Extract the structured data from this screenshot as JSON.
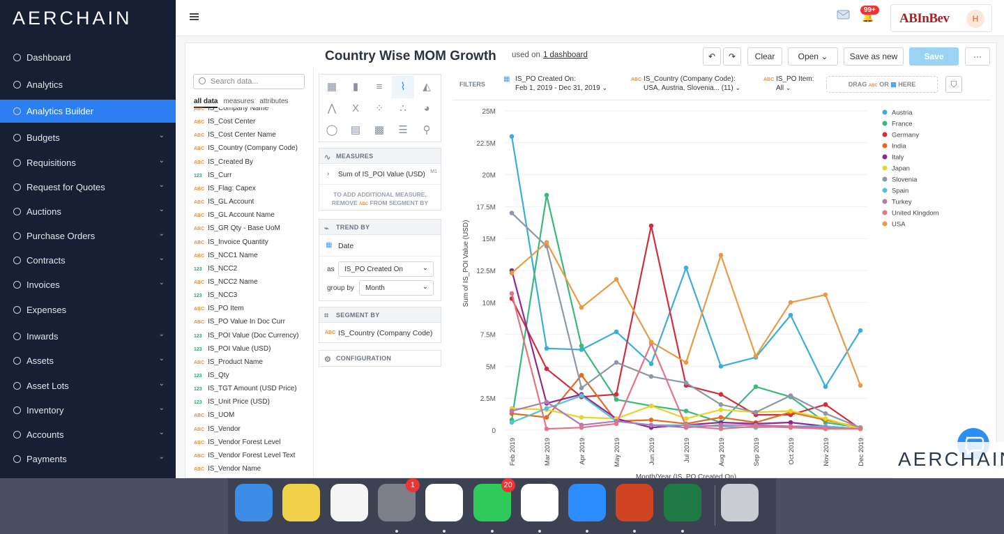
{
  "app": {
    "logo": "AERCHAIN",
    "brand": "ABInBev",
    "avatar_initial": "H",
    "notifications": "99+"
  },
  "sidebar": {
    "items": [
      {
        "label": "Dashboard",
        "chev": false
      },
      {
        "label": "Analytics",
        "chev": false
      },
      {
        "label": "Analytics Builder",
        "chev": false,
        "active": true
      },
      {
        "label": "Budgets",
        "chev": true
      },
      {
        "label": "Requisitions",
        "chev": true
      },
      {
        "label": "Request for Quotes",
        "chev": true
      },
      {
        "label": "Auctions",
        "chev": true
      },
      {
        "label": "Purchase Orders",
        "chev": true
      },
      {
        "label": "Contracts",
        "chev": true
      },
      {
        "label": "Invoices",
        "chev": true
      },
      {
        "label": "Expenses",
        "chev": false
      },
      {
        "label": "Inwards",
        "chev": true
      },
      {
        "label": "Assets",
        "chev": true
      },
      {
        "label": "Asset Lots",
        "chev": true
      },
      {
        "label": "Inventory",
        "chev": true
      },
      {
        "label": "Accounts",
        "chev": true
      },
      {
        "label": "Payments",
        "chev": true
      }
    ]
  },
  "header": {
    "title": "Country Wise MOM Growth",
    "used_on": "used on",
    "used_on_link": "1 dashboard",
    "clear": "Clear",
    "open": "Open",
    "save_as_new": "Save as new",
    "save": "Save",
    "more": "···"
  },
  "data_panel": {
    "search_placeholder": "Search data...",
    "tabs": [
      "all data",
      "measures",
      "attributes"
    ],
    "fields": [
      {
        "t": "ABC",
        "label": "IS_Company Name"
      },
      {
        "t": "ABC",
        "label": "IS_Cost Center"
      },
      {
        "t": "ABC",
        "label": "IS_Cost Center Name"
      },
      {
        "t": "ABC",
        "label": "IS_Country (Company Code)"
      },
      {
        "t": "ABC",
        "label": "IS_Created By"
      },
      {
        "t": "123",
        "label": "IS_Curr"
      },
      {
        "t": "ABC",
        "label": "IS_Flag: Capex"
      },
      {
        "t": "ABC",
        "label": "IS_GL Account"
      },
      {
        "t": "ABC",
        "label": "IS_GL Account Name"
      },
      {
        "t": "ABC",
        "label": "IS_GR Qty - Base UoM"
      },
      {
        "t": "ABC",
        "label": "IS_Invoice Quantity"
      },
      {
        "t": "ABC",
        "label": "IS_NCC1 Name"
      },
      {
        "t": "123",
        "label": "IS_NCC2"
      },
      {
        "t": "ABC",
        "label": "IS_NCC2 Name"
      },
      {
        "t": "123",
        "label": "IS_NCC3"
      },
      {
        "t": "ABC",
        "label": "IS_PO Item"
      },
      {
        "t": "ABC",
        "label": "IS_PO Value In Doc Curr"
      },
      {
        "t": "123",
        "label": "IS_POI Value (Doc Currency)"
      },
      {
        "t": "123",
        "label": "IS_POI Value (USD)"
      },
      {
        "t": "ABC",
        "label": "IS_Product Name"
      },
      {
        "t": "123",
        "label": "IS_Qty"
      },
      {
        "t": "123",
        "label": "IS_TGT Amount (USD Price)"
      },
      {
        "t": "123",
        "label": "IS_Unit Price (USD)"
      },
      {
        "t": "ABC",
        "label": "IS_UOM"
      },
      {
        "t": "ABC",
        "label": "IS_Vendor"
      },
      {
        "t": "ABC",
        "label": "IS_Vendor Forest Level"
      },
      {
        "t": "ABC",
        "label": "IS_Vendor Forest Level Text"
      },
      {
        "t": "ABC",
        "label": "IS_Vendor Name"
      }
    ]
  },
  "buckets": {
    "measures_title": "MEASURES",
    "measure_item": "Sum of IS_POI Value (USD)",
    "measure_tag": "M1",
    "measures_hint_1": "TO ADD ADDITIONAL MEASURE,",
    "measures_hint_2a": "REMOVE",
    "measures_hint_2b": "FROM SEGMENT BY",
    "trend_title": "TREND BY",
    "trend_item": "Date",
    "as_label": "as",
    "as_value": "IS_PO Created On",
    "group_label": "group by",
    "group_value": "Month",
    "segment_title": "SEGMENT BY",
    "segment_item": "IS_Country (Company Code)",
    "config_title": "CONFIGURATION"
  },
  "filters": {
    "label": "FILTERS",
    "f1_name": "IS_PO Created On:",
    "f1_value": "Feb 1, 2019 - Dec 31, 2019",
    "f2_name": "IS_Country (Company Code):",
    "f2_value": "USA, Austria, Slovenia... (11)",
    "f3_name": "IS_PO Item:",
    "f3_value": "All",
    "drop_a": "DRAG",
    "drop_b": "OR",
    "drop_c": "HERE"
  },
  "chart_data": {
    "type": "line",
    "title": "",
    "xlabel": "Month/Year (IS_PO Created On)",
    "ylabel": "Sum of IS_POI Value (USD)",
    "ylim": [
      0,
      25000000
    ],
    "yticks": [
      "0",
      "2.5M",
      "5M",
      "7.5M",
      "10M",
      "12.5M",
      "15M",
      "17.5M",
      "20M",
      "22.5M",
      "25M"
    ],
    "categories": [
      "Feb 2019",
      "Mar 2019",
      "Apr 2019",
      "May 2019",
      "Jun 2019",
      "Jul 2019",
      "Aug 2019",
      "Sep 2019",
      "Oct 2019",
      "Nov 2019",
      "Dec 2019"
    ],
    "legend_position": "right",
    "series": [
      {
        "name": "Austria",
        "color": "#3aaed8",
        "values": [
          23000000,
          6400000,
          6300000,
          7700000,
          5200000,
          12700000,
          5000000,
          5700000,
          9000000,
          3400000,
          7800000
        ]
      },
      {
        "name": "France",
        "color": "#39b97a",
        "values": [
          800000,
          18400000,
          6600000,
          2400000,
          1900000,
          1500000,
          600000,
          3400000,
          2600000,
          600000,
          200000
        ]
      },
      {
        "name": "Germany",
        "color": "#d22d3d",
        "values": [
          10300000,
          4800000,
          2600000,
          2800000,
          16000000,
          3500000,
          2800000,
          1200000,
          1200000,
          2000000,
          100000
        ]
      },
      {
        "name": "India",
        "color": "#e46a1e",
        "values": [
          1300000,
          1000000,
          4300000,
          700000,
          800000,
          500000,
          1000000,
          600000,
          1400000,
          800000,
          200000
        ]
      },
      {
        "name": "Italy",
        "color": "#8e2a8e",
        "values": [
          12500000,
          2100000,
          2800000,
          900000,
          200000,
          400000,
          600000,
          500000,
          600000,
          300000,
          100000
        ]
      },
      {
        "name": "Japan",
        "color": "#e8d52a",
        "values": [
          1700000,
          1600000,
          1000000,
          900000,
          1900000,
          900000,
          1600000,
          1400000,
          1500000,
          900000,
          100000
        ]
      },
      {
        "name": "Slovenia",
        "color": "#8c97a8",
        "values": [
          17000000,
          14400000,
          3300000,
          5300000,
          4200000,
          3700000,
          2000000,
          1400000,
          2700000,
          1300000,
          200000
        ]
      },
      {
        "name": "Spain",
        "color": "#55c3d8",
        "values": [
          600000,
          1700000,
          2700000,
          700000,
          400000,
          400000,
          300000,
          200000,
          300000,
          300000,
          100000
        ]
      },
      {
        "name": "Turkey",
        "color": "#b07ab8",
        "values": [
          1500000,
          2200000,
          400000,
          700000,
          400000,
          200000,
          400000,
          400000,
          300000,
          200000,
          100000
        ]
      },
      {
        "name": "United Kingdom",
        "color": "#e37385",
        "values": [
          10700000,
          100000,
          200000,
          500000,
          6800000,
          300000,
          100000,
          300000,
          200000,
          100000,
          100000
        ]
      },
      {
        "name": "USA",
        "color": "#e89a45",
        "values": [
          12300000,
          14700000,
          9600000,
          11800000,
          6900000,
          5300000,
          13700000,
          5800000,
          10000000,
          10600000,
          3500000
        ]
      }
    ]
  },
  "watermark": "AERCHAIN",
  "dock": {
    "apps": [
      {
        "name": "finder",
        "color": "#3c8ce6"
      },
      {
        "name": "notes",
        "color": "#f2d14a"
      },
      {
        "name": "reminders",
        "color": "#f5f5f5"
      },
      {
        "name": "system-preferences",
        "color": "#7d8088",
        "badge": "1"
      },
      {
        "name": "slack",
        "color": "#ffffff"
      },
      {
        "name": "whatsapp",
        "color": "#2fcb5a",
        "badge": "20"
      },
      {
        "name": "chrome",
        "color": "#ffffff"
      },
      {
        "name": "zoom",
        "color": "#2d8cff"
      },
      {
        "name": "powerpoint",
        "color": "#d04423"
      },
      {
        "name": "excel",
        "color": "#1f7a45"
      },
      {
        "name": "trash",
        "color": "#c9ccd2"
      }
    ]
  }
}
